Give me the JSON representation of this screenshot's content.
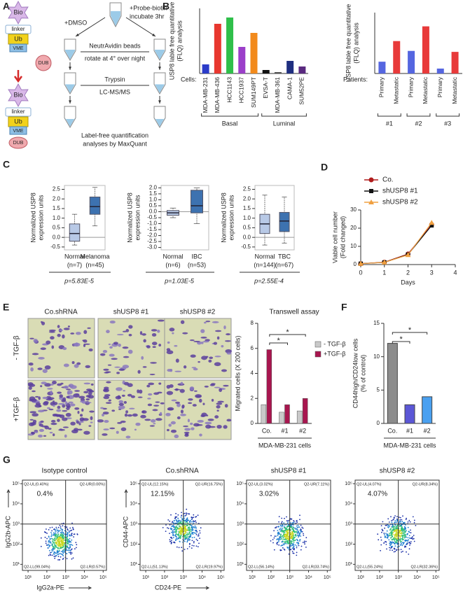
{
  "figure": {
    "panels": [
      "A",
      "B",
      "C",
      "D",
      "E",
      "F",
      "G"
    ]
  },
  "diagram": {
    "probe": [
      "Bio",
      "linker",
      "Ub",
      "VME"
    ],
    "dub": "DUB",
    "dmso": "+DMSO",
    "probe_biotin": [
      "+Probe-biotin",
      "incubate 3hr"
    ],
    "beads": "NeutrAvidin beads",
    "rotate": "rotate at 4° over night",
    "trypsin": "Trypsin",
    "lcms": "LC-MS/MS",
    "quant": [
      "Label-free quantification",
      "analyses by MaxQuant"
    ]
  },
  "chart_data": [
    {
      "type": "bar",
      "ylabel": [
        "USP8 lable free quantitative",
        "(FLQ) analysis"
      ],
      "category_label": "Cells:",
      "categories": [
        "MDA-MB-231",
        "MDA-MB-436",
        "HCC1143",
        "HCC1937",
        "SUM149PT",
        "EVSA-T",
        "MDA-MB-361",
        "CAMA-1",
        "SUM52PE"
      ],
      "values": [
        1.3,
        7.1,
        8.0,
        3.8,
        5.8,
        0.5,
        0.2,
        1.8,
        1.0
      ],
      "colors": [
        "#2b3cc9",
        "#e8372f",
        "#2fbf4a",
        "#9b3fc9",
        "#f28a1c",
        "#111111",
        "#555555",
        "#1f2f80",
        "#5a2a80"
      ],
      "ylim": [
        0,
        9.3
      ],
      "groups": [
        "Basal",
        "Luminal"
      ]
    },
    {
      "type": "bar",
      "ylabel": [
        "USP8 lable free quantitative",
        "(FLQ) analysis"
      ],
      "category_label": "Patients:",
      "categories": [
        "Primary",
        "Metastatic",
        "Primary",
        "Metastatic",
        "Primary",
        "Metastatic"
      ],
      "pairs": [
        "#1",
        "#2",
        "#3"
      ],
      "values": [
        1.2,
        3.3,
        2.3,
        4.8,
        0.5,
        2.2
      ],
      "colors": [
        "#5566e0",
        "#e83a3a",
        "#5566e0",
        "#e83a3a",
        "#5566e0",
        "#e83a3a"
      ],
      "ylim": [
        0,
        6.2
      ]
    },
    {
      "type": "box",
      "ylabel": [
        "Normalized USP8",
        "expression units"
      ],
      "categories": [
        "Normal",
        "Melanoma"
      ],
      "n_labels": [
        "(n=7)",
        "(n=45)"
      ],
      "boxes": [
        {
          "min": -0.4,
          "q1": -0.2,
          "median": 0.2,
          "q3": 0.7,
          "max": 1.2
        },
        {
          "min": 0.6,
          "q1": 1.2,
          "median": 1.6,
          "q3": 2.1,
          "max": 2.6
        }
      ],
      "colors": [
        "#b8c9e6",
        "#3d72b0"
      ],
      "ylim": [
        -0.65,
        2.7
      ],
      "yticks": [
        -0.5,
        {
          "value": 0,
          "label": "0.0"
        },
        0.5,
        {
          "value": 1,
          "label": "1.0"
        },
        1.5,
        {
          "value": 2,
          "label": "2.0"
        },
        2.5
      ],
      "p_label": "p=5.83E-5"
    },
    {
      "type": "box",
      "ylabel": [
        "Normalized USP8",
        "expression units"
      ],
      "categories": [
        "Normal",
        "IBC"
      ],
      "n_labels": [
        "(n=6)",
        "(n=53)"
      ],
      "boxes": [
        {
          "min": -0.5,
          "q1": -0.3,
          "median": -0.1,
          "q3": 0.1,
          "max": 0.3
        },
        {
          "min": -1.0,
          "q1": -0.1,
          "median": 0.5,
          "q3": 1.8,
          "max": 2.0
        }
      ],
      "colors": [
        "#b8c9e6",
        "#3d72b0"
      ],
      "ylim": [
        -3.2,
        2.2
      ],
      "yticks": [
        {
          "value": -3,
          "label": "-3.0"
        },
        -2.5,
        {
          "value": -2,
          "label": "-2.0"
        },
        -1.5,
        {
          "value": -1,
          "label": "-1.0"
        },
        -0.5,
        {
          "value": 0,
          "label": "0.0"
        },
        0.5,
        {
          "value": 1,
          "label": "1.0"
        },
        1.5,
        {
          "value": 2,
          "label": "2.0"
        }
      ],
      "p_label": "p=1.03E-5"
    },
    {
      "type": "box",
      "ylabel": [
        "Normalized USP8",
        "expression units"
      ],
      "categories": [
        "Normal",
        "TBC"
      ],
      "n_labels": [
        "(n=144)",
        "(n=67)"
      ],
      "boxes": [
        {
          "min": -0.4,
          "q1": 0.2,
          "median": 0.7,
          "q3": 1.2,
          "max": 2.2
        },
        {
          "min": -0.3,
          "q1": 0.3,
          "median": 0.85,
          "q3": 1.3,
          "max": 2.1
        }
      ],
      "colors": [
        "#b8c9e6",
        "#3d72b0"
      ],
      "ylim": [
        -0.65,
        2.7
      ],
      "yticks": [
        -0.5,
        {
          "value": 0,
          "label": "0.0"
        },
        0.5,
        {
          "value": 1,
          "label": "1.0"
        },
        1.5,
        {
          "value": 2,
          "label": "2.0"
        },
        2.5
      ],
      "p_label": "p=2.55E-4"
    },
    {
      "type": "line",
      "xlabel": "Days",
      "ylabel": [
        "Viable cell number",
        "(Fold changed)"
      ],
      "x": [
        0,
        1,
        2,
        3
      ],
      "xlim": [
        0,
        4
      ],
      "xticks": [
        0,
        1,
        2,
        3,
        4
      ],
      "ylim": [
        0,
        30
      ],
      "yticks": [
        0,
        10,
        20,
        30
      ],
      "series": [
        {
          "name": "Co.",
          "color": "#b01c1c",
          "marker": "circle",
          "values": [
            0.5,
            1.3,
            5.8,
            22
          ]
        },
        {
          "name": "shUSP8 #1",
          "color": "#111111",
          "marker": "square",
          "values": [
            0.5,
            1.2,
            5.5,
            21.5
          ]
        },
        {
          "name": "shUSP8 #2",
          "color": "#f0a040",
          "marker": "triangle",
          "values": [
            0.5,
            1.2,
            5.3,
            23
          ]
        }
      ]
    },
    {
      "type": "grouped_bar",
      "title": "Transwell assay",
      "ylabel": [
        "Migrated cells (X 200 cells)"
      ],
      "xlabel": "MDA-MB-231 cells",
      "categories": [
        "Co.",
        "#1",
        "#2"
      ],
      "series": [
        {
          "name": "- TGF-β",
          "color": "#c9c9c9",
          "values": [
            1.5,
            0.9,
            1.0
          ]
        },
        {
          "name": "+TGF-β",
          "color": "#a8164f",
          "values": [
            5.9,
            1.5,
            2.0
          ]
        }
      ],
      "ylim": [
        0,
        8
      ],
      "yticks": [
        0,
        2,
        4,
        6,
        8
      ],
      "annotations": [
        "*",
        "*"
      ]
    },
    {
      "type": "bar",
      "ylabel": [
        "CD44high/CD24low cells",
        "(% of control)"
      ],
      "xlabel": "MDA-MB-231 cells",
      "categories": [
        "Co.",
        "#1",
        "#2"
      ],
      "values": [
        12,
        2.8,
        4.0
      ],
      "colors": [
        "#8c8c8c",
        "#5b57d6",
        "#4aa0f0"
      ],
      "ylim": [
        0,
        15
      ],
      "yticks": [
        0,
        5,
        10,
        15
      ],
      "annotations": [
        "*",
        "*"
      ]
    }
  ],
  "micrographs": {
    "columns": [
      "Co.shRNA",
      "shUSP8 #1",
      "shUSP8 #2"
    ],
    "rows": [
      "- TGF-β",
      "+TGF-β"
    ]
  },
  "flow": {
    "log": true,
    "lim": [
      5,
      150000
    ],
    "ticks": [
      {
        "value": 10,
        "label": "10¹"
      },
      {
        "value": 100,
        "label": "10²"
      },
      {
        "value": 1000,
        "label": "10³"
      },
      {
        "value": 10000,
        "label": "10⁴"
      },
      {
        "value": 100000,
        "label": "10⁵"
      }
    ],
    "plots": [
      {
        "title": "Isotype control",
        "percent": "0.4%",
        "ul": "Q2-UL(0.40%)",
        "ur": "Q2-UR(0.00%)",
        "ll": "Q2-LL(99.04%)",
        "lr": "Q2-LR(0.57%)",
        "y_label": "IgG2b-APC",
        "x_label": "IgG2a-PE"
      },
      {
        "title": "Co.shRNA",
        "percent": "12.15%",
        "ul": "Q2-UL(12.15%)",
        "ur": "Q2-UR(16.75%)",
        "ll": "Q2-LL(51.13%)",
        "lr": "Q2-LR(19.97%)",
        "y_label": "CD44-APC",
        "x_label": "CD24-PE"
      },
      {
        "title": "shUSP8 #1",
        "percent": "3.02%",
        "ul": "Q2-UL(3.02%)",
        "ur": "Q2-UR(7.11%)",
        "ll": "Q2-LL(56.14%)",
        "lr": "Q2-LR(33.74%)"
      },
      {
        "title": "shUSP8 #2",
        "percent": "4.07%",
        "ul": "Q2-UL(4.07%)",
        "ur": "Q2-UR(8.34%)",
        "ll": "Q2-LL(55.24%)",
        "lr": "Q2-LR(32.36%)"
      }
    ]
  }
}
